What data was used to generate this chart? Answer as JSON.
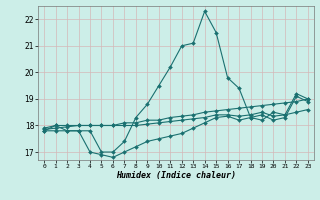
{
  "xlabel": "Humidex (Indice chaleur)",
  "bg_color": "#cceee8",
  "grid_color": "#d4b8b8",
  "line_color": "#1a7070",
  "xlim": [
    -0.5,
    23.5
  ],
  "ylim": [
    16.7,
    22.5
  ],
  "xtick_labels": [
    "0",
    "1",
    "2",
    "3",
    "4",
    "5",
    "6",
    "7",
    "8",
    "9",
    "10",
    "11",
    "12",
    "13",
    "14",
    "15",
    "16",
    "17",
    "18",
    "19",
    "20",
    "21",
    "22",
    "23"
  ],
  "yticks": [
    17,
    18,
    19,
    20,
    21,
    22
  ],
  "series": [
    {
      "x": [
        0,
        1,
        2,
        3,
        4,
        5,
        6,
        7,
        8,
        9,
        10,
        11,
        12,
        13,
        14,
        15,
        16,
        17,
        18,
        19,
        20,
        21,
        22,
        23
      ],
      "y": [
        17.8,
        18.0,
        17.8,
        17.8,
        17.8,
        17.0,
        17.0,
        17.4,
        18.3,
        18.8,
        19.5,
        20.2,
        21.0,
        21.1,
        22.3,
        21.5,
        19.8,
        19.4,
        18.3,
        18.2,
        18.5,
        18.4,
        19.2,
        19.0
      ]
    },
    {
      "x": [
        0,
        1,
        2,
        3,
        4,
        5,
        6,
        7,
        8,
        9,
        10,
        11,
        12,
        13,
        14,
        15,
        16,
        17,
        18,
        19,
        20,
        21,
        22,
        23
      ],
      "y": [
        17.9,
        18.0,
        18.0,
        18.0,
        18.0,
        18.0,
        18.0,
        18.1,
        18.1,
        18.2,
        18.2,
        18.3,
        18.35,
        18.4,
        18.5,
        18.55,
        18.6,
        18.65,
        18.7,
        18.75,
        18.8,
        18.85,
        18.9,
        19.0
      ]
    },
    {
      "x": [
        0,
        1,
        2,
        3,
        4,
        5,
        6,
        7,
        8,
        9,
        10,
        11,
        12,
        13,
        14,
        15,
        16,
        17,
        18,
        19,
        20,
        21,
        22,
        23
      ],
      "y": [
        17.8,
        17.8,
        17.8,
        17.8,
        17.0,
        16.9,
        16.8,
        17.0,
        17.2,
        17.4,
        17.5,
        17.6,
        17.7,
        17.9,
        18.1,
        18.3,
        18.35,
        18.2,
        18.3,
        18.4,
        18.2,
        18.3,
        19.1,
        18.9
      ]
    },
    {
      "x": [
        0,
        1,
        2,
        3,
        4,
        5,
        6,
        7,
        8,
        9,
        10,
        11,
        12,
        13,
        14,
        15,
        16,
        17,
        18,
        19,
        20,
        21,
        22,
        23
      ],
      "y": [
        17.85,
        17.9,
        17.95,
        18.0,
        18.0,
        18.0,
        18.0,
        18.0,
        18.0,
        18.05,
        18.1,
        18.15,
        18.2,
        18.25,
        18.3,
        18.4,
        18.4,
        18.35,
        18.4,
        18.5,
        18.35,
        18.4,
        18.5,
        18.6
      ]
    }
  ]
}
